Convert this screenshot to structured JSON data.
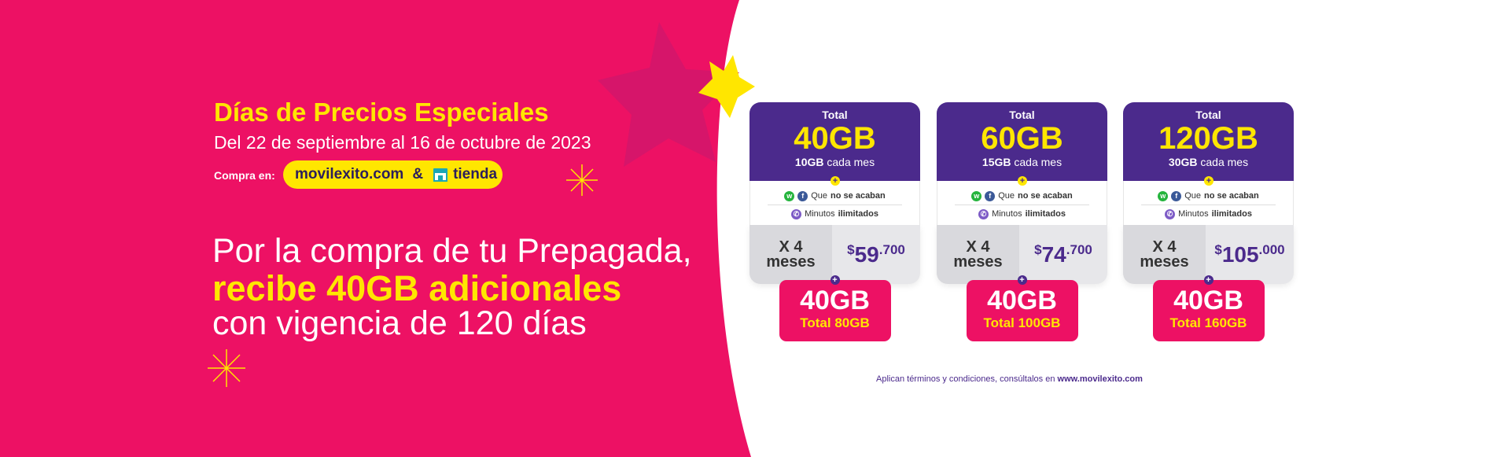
{
  "colors": {
    "pink": "#ED1164",
    "yellow": "#FFE600",
    "purple": "#4b2a8c",
    "star_pink": "#D6156A"
  },
  "promo": {
    "title": "Días de Precios Especiales",
    "dates": "Del 22 de septiembre al 16 de octubre de 2023",
    "buy_label": "Compra en:",
    "site": "movilexito.com",
    "amp": "&",
    "store": "tienda",
    "store_icon": "store-icon"
  },
  "headline": {
    "line1": "Por la compra de tu Prepagada,",
    "line2": "recibe 40GB adicionales",
    "line3": "con vigencia de 120 días"
  },
  "plans": [
    {
      "total_label": "Total",
      "total": "40GB",
      "monthly_gb": "10GB",
      "monthly_text": "cada mes",
      "feature1_pre": "Que",
      "feature1_bold": "no se acaban",
      "feature2_pre": "Minutos",
      "feature2_bold": "ilimitados",
      "months": "X 4",
      "months_word": "meses",
      "price_currency": "$",
      "price_main": "59",
      "price_cents": ".700",
      "bonus_gb": "40GB",
      "bonus_total": "Total 80GB"
    },
    {
      "total_label": "Total",
      "total": "60GB",
      "monthly_gb": "15GB",
      "monthly_text": "cada mes",
      "feature1_pre": "Que",
      "feature1_bold": "no se acaban",
      "feature2_pre": "Minutos",
      "feature2_bold": "ilimitados",
      "months": "X 4",
      "months_word": "meses",
      "price_currency": "$",
      "price_main": "74",
      "price_cents": ".700",
      "bonus_gb": "40GB",
      "bonus_total": "Total 100GB"
    },
    {
      "total_label": "Total",
      "total": "120GB",
      "monthly_gb": "30GB",
      "monthly_text": "cada mes",
      "feature1_pre": "Que",
      "feature1_bold": "no se acaban",
      "feature2_pre": "Minutos",
      "feature2_bold": "ilimitados",
      "months": "X 4",
      "months_word": "meses",
      "price_currency": "$",
      "price_main": "105",
      "price_cents": ".000",
      "bonus_gb": "40GB",
      "bonus_total": "Total 160GB"
    }
  ],
  "terms": {
    "text": "Aplican términos y condiciones, consúltalos en",
    "link": "www.movilexito.com"
  }
}
